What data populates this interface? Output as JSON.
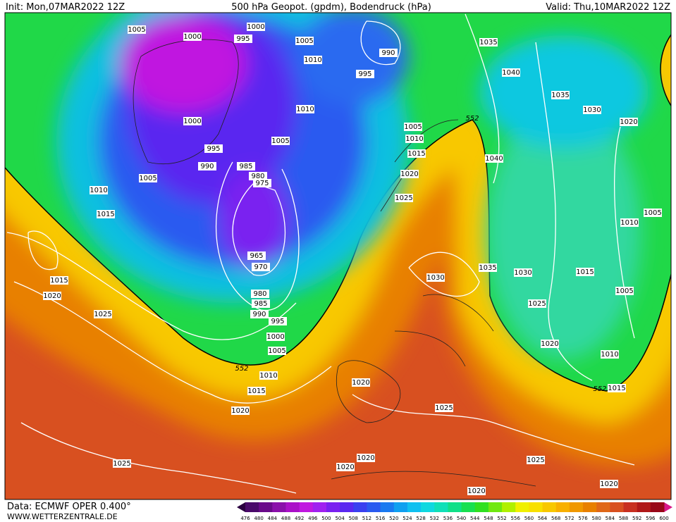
{
  "header": {
    "init": "Init: Mon,07MAR2022 12Z",
    "title": "500 hPa Geopot. (gpdm), Bodendruck (hPa)",
    "valid": "Valid: Thu,10MAR2022 12Z"
  },
  "footer": {
    "source": "Data: ECMWF OPER 0.400°",
    "site": "WWW.WETTERZENTRALE.DE"
  },
  "colorbar": {
    "ticks": [
      476,
      480,
      484,
      488,
      492,
      496,
      500,
      504,
      508,
      512,
      516,
      520,
      524,
      528,
      532,
      536,
      540,
      544,
      548,
      552,
      556,
      560,
      564,
      568,
      572,
      576,
      580,
      584,
      588,
      592,
      596,
      600
    ],
    "colors": [
      "#4a0a6a",
      "#6a0a8a",
      "#8a10aa",
      "#aa10c8",
      "#c018e0",
      "#a020f0",
      "#7a20f0",
      "#5a28f0",
      "#3a40f0",
      "#2a5af0",
      "#1a7af0",
      "#10a0f0",
      "#10c0f0",
      "#10d8e0",
      "#10e0b8",
      "#10e088",
      "#18e050",
      "#30e020",
      "#70e810",
      "#b0f000",
      "#f0f000",
      "#f8e000",
      "#f8c800",
      "#f8b000",
      "#f09800",
      "#e88000",
      "#e06818",
      "#d85020",
      "#c83020",
      "#b01818",
      "#980818"
    ]
  },
  "isobar_labels": [
    1005,
    1000,
    995,
    1000,
    1005,
    1010,
    990,
    995,
    1035,
    1040,
    1035,
    1030,
    1020,
    1010,
    1005,
    1010,
    1015,
    1020,
    1025,
    1040,
    1000,
    995,
    990,
    985,
    980,
    975,
    965,
    970,
    980,
    985,
    990,
    995,
    1000,
    1005,
    1010,
    1015,
    1020,
    1025,
    1020,
    1015,
    1015,
    1010,
    1005,
    1030,
    1035,
    1030,
    1025,
    1025,
    1020,
    1020,
    1020,
    1025,
    1020,
    1020,
    1025,
    1015,
    1005,
    1010,
    1005,
    1020,
    1010,
    1015,
    1005
  ],
  "geopotential_labels": [
    552,
    552,
    552
  ]
}
